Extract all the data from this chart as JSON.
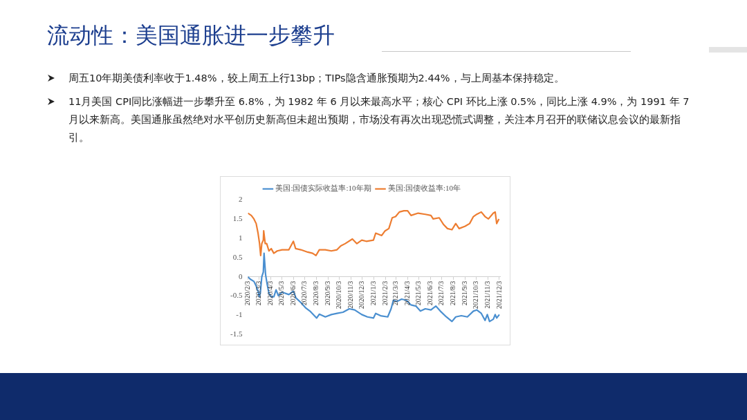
{
  "chart_data": {
    "type": "line",
    "title": "流动性：美国通胀进一步攀升",
    "annotations": [
      "周五10年期美债利率收于1.48%，较上周五上行13bp；TIPs隐含通胀预期为2.44%，与上周基本保持稳定。",
      "11月美国 CPI同比涨幅进一步攀升至 6.8%，为 1982 年 6 月以来最高水平；核心 CPI 环比上涨 0.5%，同比上涨 4.9%，为 1991 年 7 月以来新高。美国通胀虽然绝对水平创历史新高但未超出预期，市场没有再次出现恐慌式调整，关注本月召开的联储议息会议的最新指引。"
    ],
    "series": [
      {
        "name": "美国:国债实际收益率:10年期",
        "color": "#4a8fd0",
        "x": [
          "2020-02-03",
          "2020-02-09",
          "2020-02-19",
          "2020-02-25",
          "2020-03-01",
          "2020-03-04",
          "2020-03-07",
          "2020-03-11",
          "2020-03-15",
          "2020-03-17",
          "2020-03-21",
          "2020-03-25",
          "2020-03-30",
          "2020-04-05",
          "2020-04-12",
          "2020-04-18",
          "2020-04-24",
          "2020-05-04",
          "2020-05-22",
          "2020-06-03",
          "2020-06-10",
          "2020-06-23",
          "2020-07-05",
          "2020-07-17",
          "2020-08-04",
          "2020-08-11",
          "2020-08-27",
          "2020-09-12",
          "2020-09-27",
          "2020-10-13",
          "2020-10-30",
          "2020-11-13",
          "2020-12-02",
          "2020-12-17",
          "2021-01-02",
          "2021-01-08",
          "2021-01-21",
          "2021-02-09",
          "2021-02-18",
          "2021-02-24",
          "2021-03-06",
          "2021-03-18",
          "2021-03-31",
          "2021-04-12",
          "2021-04-25",
          "2021-05-07",
          "2021-05-20",
          "2021-06-04",
          "2021-06-17",
          "2021-06-29",
          "2021-07-15",
          "2021-07-30",
          "2021-08-09",
          "2021-08-24",
          "2021-09-09",
          "2021-09-25",
          "2021-10-04",
          "2021-10-16",
          "2021-10-26",
          "2021-11-01",
          "2021-11-07",
          "2021-11-17",
          "2021-11-22",
          "2021-11-26",
          "2021-12-03"
        ],
        "values": [
          0.0,
          -0.06,
          -0.12,
          -0.24,
          -0.37,
          -0.52,
          -0.43,
          0.0,
          0.12,
          0.61,
          0.06,
          -0.18,
          -0.43,
          -0.52,
          -0.52,
          -0.34,
          -0.49,
          -0.4,
          -0.46,
          -0.37,
          -0.55,
          -0.67,
          -0.8,
          -0.89,
          -1.07,
          -0.97,
          -1.04,
          -0.98,
          -0.95,
          -0.92,
          -0.83,
          -0.86,
          -0.98,
          -1.04,
          -1.07,
          -0.95,
          -1.01,
          -1.04,
          -0.83,
          -0.61,
          -0.64,
          -0.58,
          -0.61,
          -0.73,
          -0.76,
          -0.89,
          -0.83,
          -0.86,
          -0.76,
          -0.89,
          -1.04,
          -1.16,
          -1.04,
          -1.01,
          -1.04,
          -0.89,
          -0.86,
          -0.95,
          -1.13,
          -0.98,
          -1.16,
          -1.1,
          -0.98,
          -1.07,
          -0.98
        ]
      },
      {
        "name": "美国:国债收益率:10年",
        "color": "#ed7d31",
        "x": [
          "2020-02-03",
          "2020-02-12",
          "2020-02-19",
          "2020-02-25",
          "2020-03-01",
          "2020-03-05",
          "2020-03-08",
          "2020-03-11",
          "2020-03-15",
          "2020-03-16",
          "2020-03-20",
          "2020-03-24",
          "2020-03-30",
          "2020-04-05",
          "2020-04-12",
          "2020-04-21",
          "2020-05-04",
          "2020-05-22",
          "2020-06-03",
          "2020-06-09",
          "2020-06-23",
          "2020-07-11",
          "2020-07-24",
          "2020-08-02",
          "2020-08-11",
          "2020-08-27",
          "2020-09-12",
          "2020-09-27",
          "2020-10-07",
          "2020-10-19",
          "2020-11-07",
          "2020-11-19",
          "2020-12-02",
          "2020-12-14",
          "2021-01-02",
          "2021-01-08",
          "2021-01-24",
          "2021-02-02",
          "2021-02-12",
          "2021-02-21",
          "2021-03-02",
          "2021-03-12",
          "2021-03-24",
          "2021-04-03",
          "2021-04-12",
          "2021-05-01",
          "2021-05-20",
          "2021-06-04",
          "2021-06-10",
          "2021-06-26",
          "2021-07-08",
          "2021-07-18",
          "2021-07-30",
          "2021-08-09",
          "2021-08-18",
          "2021-09-03",
          "2021-09-15",
          "2021-09-25",
          "2021-10-04",
          "2021-10-16",
          "2021-10-26",
          "2021-11-04",
          "2021-11-17",
          "2021-11-22",
          "2021-11-26",
          "2021-12-02"
        ],
        "values": [
          1.65,
          1.59,
          1.5,
          1.38,
          1.13,
          0.86,
          0.55,
          0.86,
          0.95,
          1.19,
          0.86,
          0.86,
          0.67,
          0.73,
          0.61,
          0.67,
          0.7,
          0.7,
          0.92,
          0.73,
          0.7,
          0.64,
          0.61,
          0.55,
          0.7,
          0.7,
          0.67,
          0.7,
          0.8,
          0.86,
          0.98,
          0.86,
          0.95,
          0.92,
          0.95,
          1.13,
          1.07,
          1.19,
          1.25,
          1.53,
          1.56,
          1.68,
          1.71,
          1.71,
          1.59,
          1.65,
          1.62,
          1.59,
          1.5,
          1.53,
          1.35,
          1.25,
          1.22,
          1.38,
          1.25,
          1.31,
          1.38,
          1.56,
          1.62,
          1.68,
          1.56,
          1.5,
          1.65,
          1.68,
          1.38,
          1.5
        ]
      }
    ],
    "xlim": [
      "2020-02-03",
      "2021-12-05"
    ],
    "xticks": [
      {
        "value": "2020-02-03",
        "label": "2020/2/3"
      },
      {
        "value": "2020-03-03",
        "label": "2020/3/3"
      },
      {
        "value": "2020-04-03",
        "label": "2020/4/3"
      },
      {
        "value": "2020-05-03",
        "label": "2020/5/3"
      },
      {
        "value": "2020-06-03",
        "label": "2020/6/3"
      },
      {
        "value": "2020-07-03",
        "label": "2020/7/3"
      },
      {
        "value": "2020-08-03",
        "label": "2020/8/3"
      },
      {
        "value": "2020-09-03",
        "label": "2020/9/3"
      },
      {
        "value": "2020-10-03",
        "label": "2020/10/3"
      },
      {
        "value": "2020-11-03",
        "label": "2020/11/3"
      },
      {
        "value": "2020-12-03",
        "label": "2020/12/3"
      },
      {
        "value": "2021-01-03",
        "label": "2021/1/3"
      },
      {
        "value": "2021-02-03",
        "label": "2021/2/3"
      },
      {
        "value": "2021-03-03",
        "label": "2021/3/3"
      },
      {
        "value": "2021-04-03",
        "label": "2021/4/3"
      },
      {
        "value": "2021-05-03",
        "label": "2021/5/3"
      },
      {
        "value": "2021-06-03",
        "label": "2021/6/3"
      },
      {
        "value": "2021-07-03",
        "label": "2021/7/3"
      },
      {
        "value": "2021-08-03",
        "label": "2021/8/3"
      },
      {
        "value": "2021-09-03",
        "label": "2021/9/3"
      },
      {
        "value": "2021-10-03",
        "label": "2021/10/3"
      },
      {
        "value": "2021-11-03",
        "label": "2021/11/3"
      },
      {
        "value": "2021-12-03",
        "label": "2021/12/3"
      }
    ],
    "ylim": [
      -1.5,
      2
    ],
    "yticks": [
      -1.5,
      -1,
      -0.5,
      0,
      0.5,
      1,
      1.5,
      2
    ],
    "grid": false,
    "legend": "top",
    "marker": "none"
  }
}
